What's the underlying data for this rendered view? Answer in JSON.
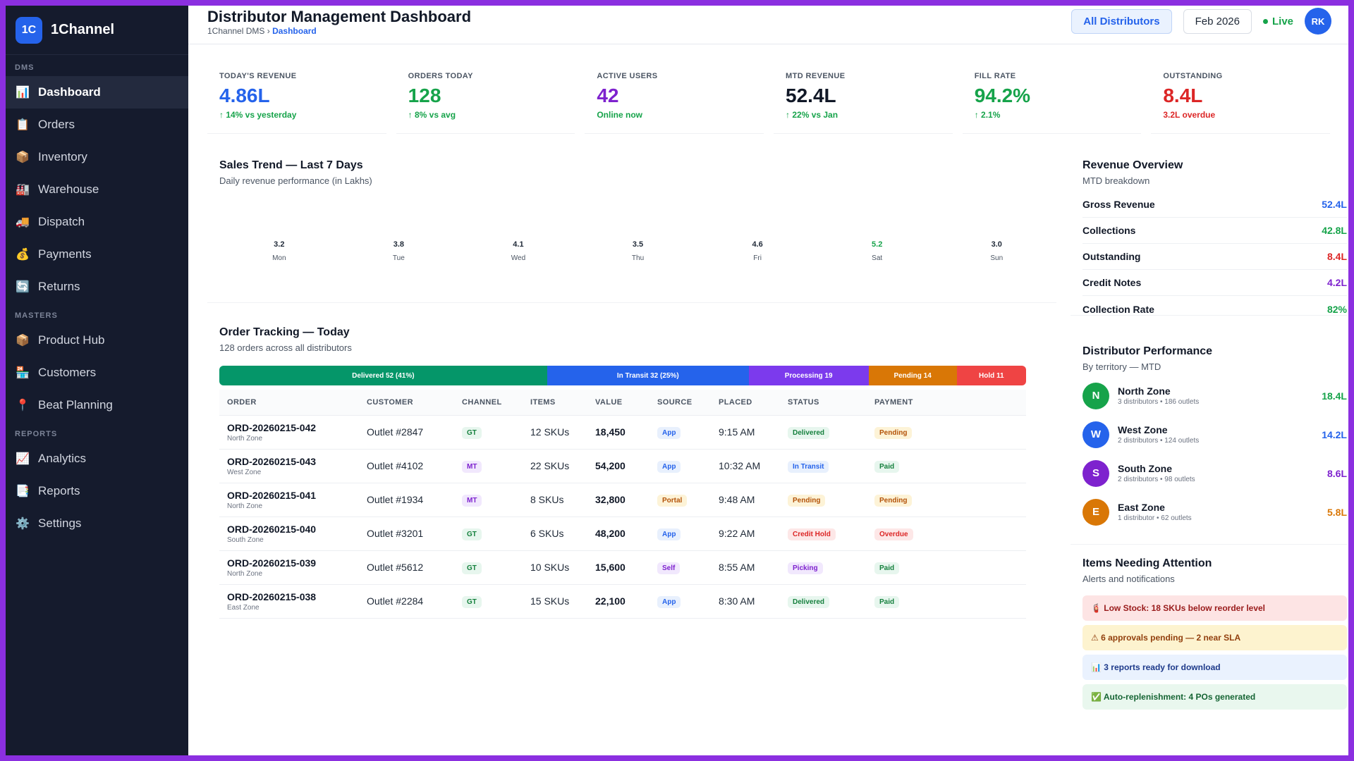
{
  "brand": {
    "logo": "1C",
    "name": "1Channel"
  },
  "sidebar": {
    "sections": [
      {
        "title": "DMS",
        "items": [
          {
            "label": "Dashboard",
            "icon": "📊",
            "active": true
          },
          {
            "label": "Orders",
            "icon": "📋"
          },
          {
            "label": "Inventory",
            "icon": "📦"
          },
          {
            "label": "Warehouse",
            "icon": "🏭"
          },
          {
            "label": "Dispatch",
            "icon": "🚚"
          },
          {
            "label": "Payments",
            "icon": "💰"
          },
          {
            "label": "Returns",
            "icon": "🔄"
          }
        ]
      },
      {
        "title": "MASTERS",
        "items": [
          {
            "label": "Product Hub",
            "icon": "📦"
          },
          {
            "label": "Customers",
            "icon": "🏪"
          },
          {
            "label": "Beat Planning",
            "icon": "📍"
          }
        ]
      },
      {
        "title": "REPORTS",
        "items": [
          {
            "label": "Analytics",
            "icon": "📈"
          },
          {
            "label": "Reports",
            "icon": "📑"
          },
          {
            "label": "Settings",
            "icon": "⚙️"
          }
        ]
      }
    ]
  },
  "header": {
    "title": "Distributor Management Dashboard",
    "breadcrumb_root": "1Channel DMS",
    "breadcrumb_sep": "›",
    "breadcrumb_current": "Dashboard",
    "distributors_button": "All Distributors",
    "month_button": "Feb 2026",
    "live_label": "Live",
    "avatar_initials": "RK"
  },
  "kpis": [
    {
      "label": "TODAY'S REVENUE",
      "value": "4.86L",
      "sub": "↑ 14% vs yesterday",
      "value_color": "#2563eb",
      "sub_color": "#16a34a"
    },
    {
      "label": "ORDERS TODAY",
      "value": "128",
      "sub": "↑ 8% vs avg",
      "value_color": "#16a34a",
      "sub_color": "#16a34a"
    },
    {
      "label": "ACTIVE USERS",
      "value": "42",
      "sub": "Online now",
      "value_color": "#7e22ce",
      "sub_color": "#16a34a"
    },
    {
      "label": "MTD REVENUE",
      "value": "52.4L",
      "sub": "↑ 22% vs Jan",
      "value_color": "#111827",
      "sub_color": "#16a34a"
    },
    {
      "label": "FILL RATE",
      "value": "94.2%",
      "sub": "↑ 2.1%",
      "value_color": "#16a34a",
      "sub_color": "#16a34a"
    },
    {
      "label": "OUTSTANDING",
      "value": "8.4L",
      "sub": "3.2L overdue",
      "value_color": "#dc2626",
      "sub_color": "#dc2626"
    }
  ],
  "sales_trend": {
    "title": "Sales Trend — Last 7 Days",
    "subtitle": "Daily revenue performance (in Lakhs)"
  },
  "chart_data": {
    "type": "bar",
    "categories": [
      "Mon",
      "Tue",
      "Wed",
      "Thu",
      "Fri",
      "Sat",
      "Sun"
    ],
    "values": [
      3.2,
      3.8,
      4.1,
      3.5,
      4.6,
      5.2,
      3.0
    ],
    "labels": [
      "3.2",
      "3.8",
      "4.1",
      "3.5",
      "4.6",
      "5.2",
      "3.0"
    ],
    "highlight_index": 5,
    "highlight_color": "#16a34a",
    "title": "Sales Trend — Last 7 Days",
    "ylabel": "",
    "xlabel": ""
  },
  "order_tracking": {
    "title": "Order Tracking — Today",
    "subtitle": "128 orders across all distributors",
    "segments": [
      {
        "label": "Delivered 52 (41%)",
        "count": 52,
        "color": "#059669"
      },
      {
        "label": "In Transit 32 (25%)",
        "count": 32,
        "color": "#2563eb"
      },
      {
        "label": "Processing 19",
        "count": 19,
        "color": "#7c3aed"
      },
      {
        "label": "Pending 14",
        "count": 14,
        "color": "#d97706"
      },
      {
        "label": "Hold 11",
        "count": 11,
        "color": "#ef4444"
      }
    ],
    "columns": [
      "ORDER",
      "CUSTOMER",
      "CHANNEL",
      "ITEMS",
      "VALUE",
      "SOURCE",
      "PLACED",
      "STATUS",
      "PAYMENT"
    ],
    "rows": [
      {
        "order": "ORD-20260215-042",
        "zone": "North Zone",
        "customer": "Outlet #2847",
        "channel": "GT",
        "items": "12 SKUs",
        "value": "18,450",
        "source": "App",
        "placed": "9:15 AM",
        "status": "Delivered",
        "payment": "Pending"
      },
      {
        "order": "ORD-20260215-043",
        "zone": "West Zone",
        "customer": "Outlet #4102",
        "channel": "MT",
        "items": "22 SKUs",
        "value": "54,200",
        "source": "App",
        "placed": "10:32 AM",
        "status": "In Transit",
        "payment": "Paid"
      },
      {
        "order": "ORD-20260215-041",
        "zone": "North Zone",
        "customer": "Outlet #1934",
        "channel": "MT",
        "items": "8 SKUs",
        "value": "32,800",
        "source": "Portal",
        "placed": "9:48 AM",
        "status": "Pending",
        "payment": "Pending"
      },
      {
        "order": "ORD-20260215-040",
        "zone": "South Zone",
        "customer": "Outlet #3201",
        "channel": "GT",
        "items": "6 SKUs",
        "value": "48,200",
        "source": "App",
        "placed": "9:22 AM",
        "status": "Credit Hold",
        "payment": "Overdue"
      },
      {
        "order": "ORD-20260215-039",
        "zone": "North Zone",
        "customer": "Outlet #5612",
        "channel": "GT",
        "items": "10 SKUs",
        "value": "15,600",
        "source": "Self",
        "placed": "8:55 AM",
        "status": "Picking",
        "payment": "Paid"
      },
      {
        "order": "ORD-20260215-038",
        "zone": "East Zone",
        "customer": "Outlet #2284",
        "channel": "GT",
        "items": "15 SKUs",
        "value": "22,100",
        "source": "App",
        "placed": "8:30 AM",
        "status": "Delivered",
        "payment": "Paid"
      }
    ]
  },
  "revenue_overview": {
    "title": "Revenue Overview",
    "subtitle": "MTD breakdown",
    "rows": [
      {
        "label": "Gross Revenue",
        "value": "52.4L",
        "color": "#2563eb"
      },
      {
        "label": "Collections",
        "value": "42.8L",
        "color": "#16a34a"
      },
      {
        "label": "Outstanding",
        "value": "8.4L",
        "color": "#dc2626"
      },
      {
        "label": "Credit Notes",
        "value": "4.2L",
        "color": "#7e22ce"
      },
      {
        "label": "Collection Rate",
        "value": "82%",
        "color": "#16a34a"
      }
    ]
  },
  "distributor_performance": {
    "title": "Distributor Performance",
    "subtitle": "By territory — MTD",
    "rows": [
      {
        "initial": "N",
        "name": "North Zone",
        "meta": "3 distributors • 186 outlets",
        "value": "18.4L",
        "color": "#16a34a",
        "value_color": "#16a34a"
      },
      {
        "initial": "W",
        "name": "West Zone",
        "meta": "2 distributors • 124 outlets",
        "value": "14.2L",
        "color": "#2563eb",
        "value_color": "#2563eb"
      },
      {
        "initial": "S",
        "name": "South Zone",
        "meta": "2 distributors • 98 outlets",
        "value": "8.6L",
        "color": "#7e22ce",
        "value_color": "#7e22ce"
      },
      {
        "initial": "E",
        "name": "East Zone",
        "meta": "1 distributor • 62 outlets",
        "value": "5.8L",
        "color": "#d97706",
        "value_color": "#d97706"
      }
    ]
  },
  "attention": {
    "title": "Items Needing Attention",
    "subtitle": "Alerts and notifications",
    "alerts": [
      {
        "text": "🧯 Low Stock: 18 SKUs below reorder level",
        "bg": "#fde4e4",
        "color": "#991b1b"
      },
      {
        "text": "⚠ 6 approvals pending — 2 near SLA",
        "bg": "#fdf3cf",
        "color": "#92400e"
      },
      {
        "text": "📊 3 reports ready for download",
        "bg": "#eaf2fe",
        "color": "#1e3a8a"
      },
      {
        "text": "✅ Auto-replenishment: 4 POs generated",
        "bg": "#e9f7ee",
        "color": "#166534"
      }
    ]
  }
}
